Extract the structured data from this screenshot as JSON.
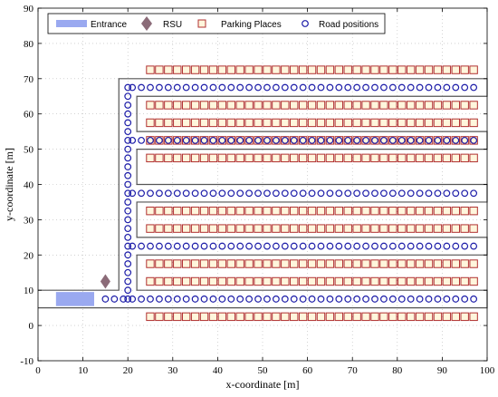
{
  "chart_data": {
    "type": "scatter",
    "title": "",
    "xlabel": "x-coordinate [m]",
    "ylabel": "y-coordinate [m]",
    "xlim": [
      0,
      100
    ],
    "ylim": [
      -10,
      90
    ],
    "xticks": [
      0,
      10,
      20,
      30,
      40,
      50,
      60,
      70,
      80,
      90,
      100
    ],
    "yticks": [
      -10,
      0,
      10,
      20,
      30,
      40,
      50,
      60,
      70,
      80,
      90
    ],
    "grid": true,
    "legend_position": "top",
    "colors": {
      "entrance": "#9aa9f0",
      "rsu": "#8b6b78",
      "parking": "#b03030",
      "parking_fill": "#fff6dc",
      "road": "#1c1ca8",
      "boundary": "#555555"
    },
    "series": [
      {
        "name": "Entrance",
        "marker": "rect",
        "x": [
          4,
          12.5
        ],
        "y": [
          5.5,
          9.5
        ]
      },
      {
        "name": "RSU",
        "marker": "diamond",
        "x": [
          15
        ],
        "y": [
          12.5
        ]
      },
      {
        "name": "Parking Places",
        "marker": "square",
        "rows_y": [
          2.5,
          12.5,
          17.5,
          27.5,
          32.5,
          47.5,
          52.5,
          57.5,
          62.5,
          72.5
        ],
        "x_start": 25,
        "x_end": 97,
        "x_step": 2
      },
      {
        "name": "Road positions",
        "marker": "circle",
        "rows_y": [
          7.5,
          22.5,
          37.5,
          52.5,
          67.5
        ],
        "x_start": 15,
        "x_end": 97,
        "x_step": 2,
        "column_x": 20,
        "column_y_start": 7.5,
        "column_y_end": 67.5,
        "column_y_step": 2.5
      }
    ]
  }
}
